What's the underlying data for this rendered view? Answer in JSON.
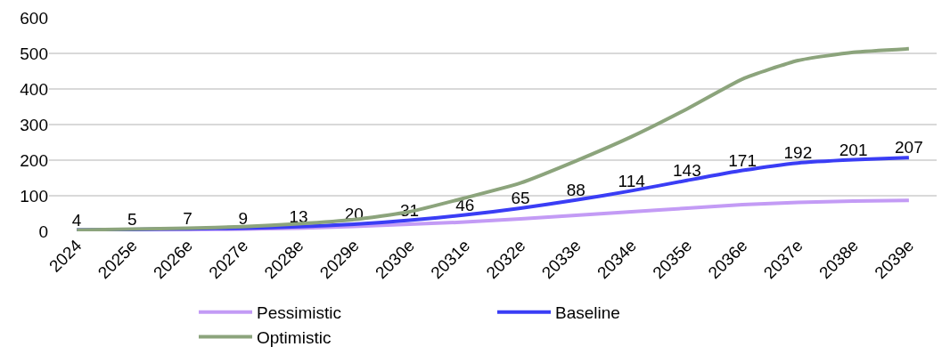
{
  "chart_data": {
    "type": "line",
    "categories": [
      "2024",
      "2025e",
      "2026e",
      "2027e",
      "2028e",
      "2029e",
      "2030e",
      "2031e",
      "2032e",
      "2033e",
      "2034e",
      "2035e",
      "2036e",
      "2037e",
      "2038e",
      "2039e"
    ],
    "series": [
      {
        "name": "Pessimistic",
        "color": "#c39bf5",
        "values": [
          3,
          4,
          5,
          6,
          9,
          14,
          20,
          26,
          35,
          45,
          55,
          65,
          75,
          81,
          85,
          87
        ]
      },
      {
        "name": "Baseline",
        "color": "#3a3df5",
        "values": [
          4,
          5,
          7,
          9,
          13,
          20,
          31,
          46,
          65,
          88,
          114,
          143,
          171,
          192,
          201,
          207
        ],
        "value_labels": [
          "4",
          "5",
          "7",
          "9",
          "13",
          "20",
          "31",
          "46",
          "65",
          "88",
          "114",
          "143",
          "171",
          "192",
          "201",
          "207"
        ]
      },
      {
        "name": "Optimistic",
        "color": "#8ca47c",
        "values": [
          4,
          6,
          9,
          13,
          21,
          33,
          55,
          94,
          136,
          198,
          266,
          344,
          428,
          480,
          503,
          513
        ]
      }
    ],
    "ylim": [
      0,
      600
    ],
    "yticks": [
      0,
      100,
      200,
      300,
      400,
      500,
      600
    ],
    "grid": "y",
    "legend": "bottom",
    "marker": "none",
    "line_style": "solid"
  }
}
